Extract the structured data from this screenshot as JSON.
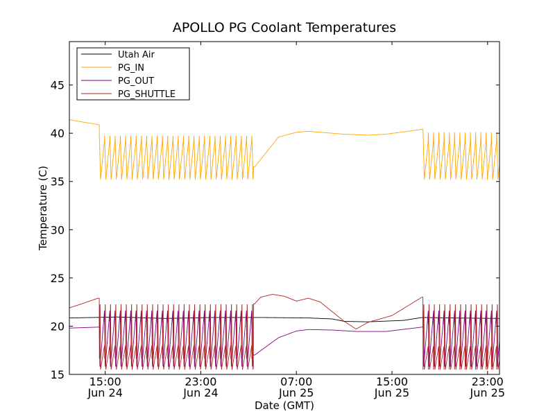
{
  "chart_data": {
    "type": "line",
    "title": "APOLLO PG Coolant Temperatures",
    "xlabel": "Date (GMT)",
    "ylabel": "Temperature (C)",
    "x_unit": "hours since Jun 24 12:00 GMT",
    "xlim": [
      0,
      36
    ],
    "ylim": [
      15,
      49.5
    ],
    "yticks": [
      15,
      20,
      25,
      30,
      35,
      40,
      45
    ],
    "xticks": [
      {
        "x": 3,
        "line1": "15:00",
        "line2": "Jun 24"
      },
      {
        "x": 11,
        "line1": "23:00",
        "line2": "Jun 24"
      },
      {
        "x": 19,
        "line1": "07:00",
        "line2": "Jun 25"
      },
      {
        "x": 27,
        "line1": "15:00",
        "line2": "Jun 25"
      },
      {
        "x": 35,
        "line1": "23:00",
        "line2": "Jun 25"
      }
    ],
    "legend_position": "top-left",
    "series": [
      {
        "name": "Utah Air",
        "color": "#000000",
        "profile": [
          [
            0,
            20.85
          ],
          [
            2,
            20.9
          ],
          [
            4,
            20.95
          ],
          [
            8,
            20.8
          ],
          [
            12,
            20.9
          ],
          [
            16,
            20.9
          ],
          [
            20,
            20.85
          ],
          [
            22,
            20.75
          ],
          [
            23,
            20.5
          ],
          [
            25,
            20.45
          ],
          [
            28,
            20.6
          ],
          [
            29.5,
            20.9
          ],
          [
            32,
            20.85
          ],
          [
            36,
            20.8
          ]
        ],
        "drop_min": 20.2
      },
      {
        "name": "PG_IN",
        "color": "#ffa500",
        "profile": [
          [
            0,
            41.4
          ],
          [
            2.4,
            40.9
          ],
          [
            15.5,
            36.5
          ],
          [
            17.5,
            39.6
          ],
          [
            19,
            40.1
          ],
          [
            20,
            40.2
          ],
          [
            21,
            40.1
          ],
          [
            23,
            39.9
          ],
          [
            25,
            39.8
          ],
          [
            26.5,
            39.9
          ],
          [
            29.5,
            40.4
          ]
        ],
        "cycle_low": 35.2,
        "cycle_high": 39.3,
        "start_spike": 42.4,
        "end_spike": 41.9,
        "first_dip": 34.1
      },
      {
        "name": "PG_OUT",
        "color": "#800080",
        "profile": [
          [
            0,
            19.8
          ],
          [
            2.4,
            19.9
          ],
          [
            15.5,
            17.0
          ],
          [
            17.5,
            18.8
          ],
          [
            19,
            19.5
          ],
          [
            20,
            19.65
          ],
          [
            22,
            19.6
          ],
          [
            24,
            19.45
          ],
          [
            26.5,
            19.45
          ],
          [
            29.5,
            19.9
          ]
        ],
        "cycle_low": 15.7,
        "cycle_high": 21.6
      },
      {
        "name": "PG_SHUTTLE",
        "color": "#b22222",
        "profile": [
          [
            0,
            21.9
          ],
          [
            1,
            22.3
          ],
          [
            2.4,
            22.9
          ],
          [
            15.5,
            22.3
          ],
          [
            16,
            23.0
          ],
          [
            17,
            23.3
          ],
          [
            18,
            23.1
          ],
          [
            19,
            22.6
          ],
          [
            20,
            22.9
          ],
          [
            21,
            22.5
          ],
          [
            22,
            21.5
          ],
          [
            23,
            20.5
          ],
          [
            24,
            19.7
          ],
          [
            25,
            20.4
          ],
          [
            27,
            21.1
          ],
          [
            29.5,
            23.0
          ]
        ],
        "cycle_low": 15.5,
        "cycle_high": 22.9
      }
    ]
  }
}
